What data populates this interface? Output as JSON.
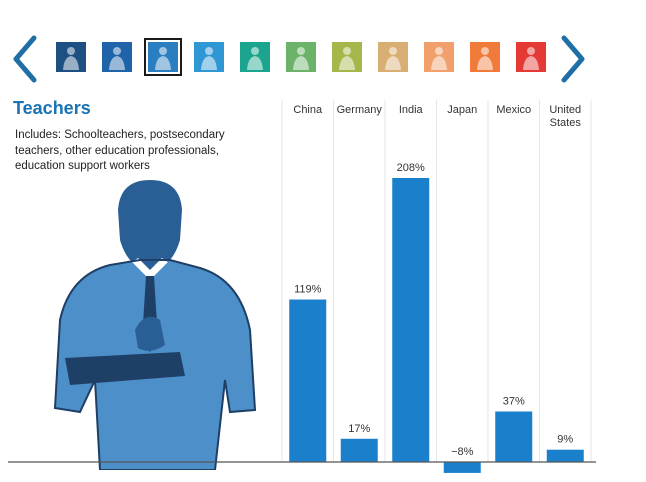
{
  "navigation": {
    "prev_icon": "chevron-left-icon",
    "next_icon": "chevron-right-icon",
    "arrow_color": "#1d6fa5",
    "thumbnails": [
      {
        "icon": "occupation-figure-icon",
        "color": "#1c4f82",
        "selected": false
      },
      {
        "icon": "occupation-figure-icon",
        "color": "#1f63a8",
        "selected": false
      },
      {
        "icon": "teacher-figure-icon",
        "color": "#2b7fc1",
        "selected": true
      },
      {
        "icon": "occupation-figure-icon",
        "color": "#2f97d4",
        "selected": false
      },
      {
        "icon": "occupation-figure-icon",
        "color": "#1ba48e",
        "selected": false
      },
      {
        "icon": "occupation-figure-icon",
        "color": "#6cb36a",
        "selected": false
      },
      {
        "icon": "occupation-figure-icon",
        "color": "#a6b64a",
        "selected": false
      },
      {
        "icon": "occupation-figure-icon",
        "color": "#d9ae72",
        "selected": false
      },
      {
        "icon": "occupation-figure-icon",
        "color": "#f1a06c",
        "selected": false
      },
      {
        "icon": "occupation-figure-icon",
        "color": "#ef7a3a",
        "selected": false
      },
      {
        "icon": "occupation-figure-icon",
        "color": "#e53935",
        "selected": false
      }
    ]
  },
  "category": {
    "title": "Teachers",
    "description": "Includes: Schoolteachers, postsecondary teachers, other education professionals, education support workers",
    "illustration": "teacher-writing-on-clipboard-illustration"
  },
  "colors": {
    "accent": "#1a73b5",
    "bar": "#1a80cc",
    "gridline": "#e6e6e6",
    "baseline": "#555555",
    "illustration_fill": "#4d8fc9"
  },
  "chart_data": {
    "type": "bar",
    "categories": [
      "China",
      "Germany",
      "India",
      "Japan",
      "Mexico",
      "United States"
    ],
    "values": [
      119,
      17,
      208,
      -8,
      37,
      9
    ],
    "data_labels": [
      "119%",
      "17%",
      "208%",
      "−8%",
      "37%",
      "9%"
    ],
    "unit": "%",
    "title": "Teachers",
    "xlabel": "",
    "ylabel": "",
    "ylim": [
      -8,
      208
    ],
    "grid": "vertical separators between countries",
    "legend": "none"
  }
}
